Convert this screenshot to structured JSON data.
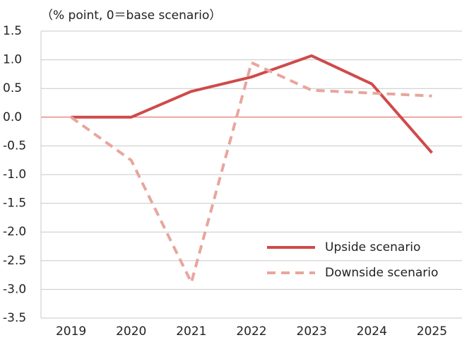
{
  "chart_data": {
    "type": "line",
    "annotation": "（% point, 0＝base scenario）",
    "categories": [
      "2019",
      "2020",
      "2021",
      "2022",
      "2023",
      "2024",
      "2025"
    ],
    "series": [
      {
        "name": "Upside scenario",
        "color": "#cf4a4a",
        "dash": false,
        "values": [
          0,
          0,
          0.45,
          0.7,
          1.07,
          0.58,
          -0.62
        ]
      },
      {
        "name": "Downside scenario",
        "color": "#e8a69d",
        "dash": true,
        "values": [
          0,
          -0.75,
          -2.88,
          0.95,
          0.47,
          0.42,
          0.37
        ]
      }
    ],
    "ylim": [
      -3.5,
      1.5
    ],
    "yticks": [
      1.5,
      {
        "value": 1,
        "label": "1.0"
      },
      0.5,
      {
        "value": 0,
        "label": "0.0"
      },
      -0.5,
      {
        "value": -1,
        "label": "-1.0"
      },
      -1.5,
      {
        "value": -2,
        "label": "-2.0"
      },
      -2.5,
      {
        "value": -3,
        "label": "-3.0"
      },
      -3.5
    ],
    "grid": true,
    "legend": "lower right"
  }
}
